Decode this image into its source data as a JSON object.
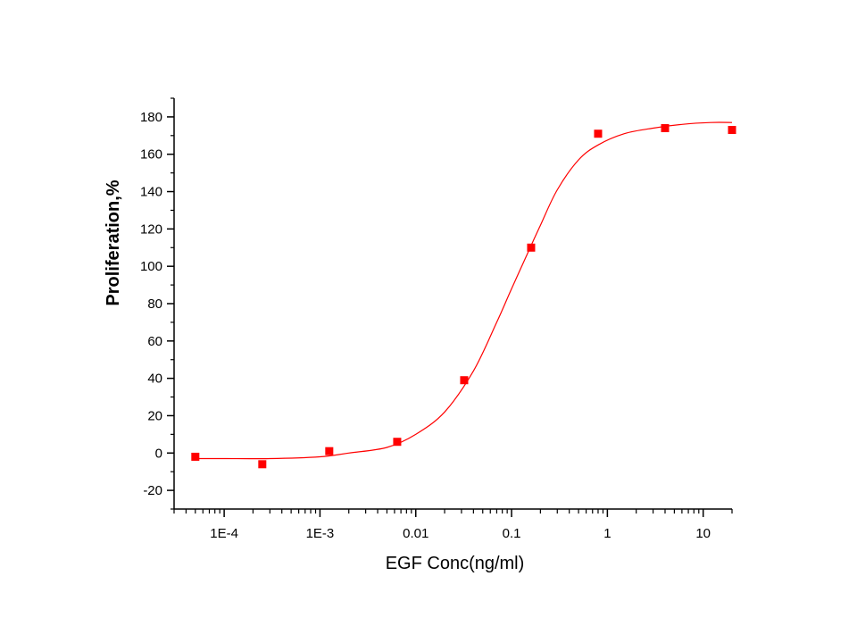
{
  "chart_data": {
    "type": "scatter",
    "title": "",
    "xlabel": "EGF Conc(ng/ml)",
    "ylabel": "Proliferation,%",
    "x_scale": "log",
    "xlim": [
      3e-05,
      20
    ],
    "ylim": [
      -30,
      190
    ],
    "x_ticks": [
      {
        "value": 0.0001,
        "label": "1E-4"
      },
      {
        "value": 0.001,
        "label": "1E-3"
      },
      {
        "value": 0.01,
        "label": "0.01"
      },
      {
        "value": 0.1,
        "label": "0.1"
      },
      {
        "value": 1,
        "label": "1"
      },
      {
        "value": 10,
        "label": "10"
      }
    ],
    "y_ticks": [
      -20,
      0,
      20,
      40,
      60,
      80,
      100,
      120,
      140,
      160,
      180
    ],
    "grid": false,
    "legend": "none",
    "series": [
      {
        "kind": "points",
        "marker": "square",
        "color": "#ff0000",
        "x": [
          5e-05,
          0.00025,
          0.00125,
          0.0064,
          0.032,
          0.16,
          0.8,
          4.0,
          20.0
        ],
        "y": [
          -2,
          -6,
          1,
          6,
          39,
          110,
          171,
          174,
          173
        ]
      },
      {
        "kind": "fit",
        "color": "#ff0000",
        "x": [
          5e-05,
          0.0001,
          0.0003,
          0.001,
          0.002,
          0.005,
          0.01,
          0.02,
          0.04,
          0.07,
          0.1,
          0.15,
          0.2,
          0.3,
          0.5,
          0.8,
          1.5,
          3,
          6,
          12,
          20
        ],
        "y": [
          -3,
          -3,
          -3,
          -2,
          0,
          3,
          10,
          22,
          44,
          70,
          88,
          108,
          122,
          141,
          157,
          165,
          171,
          174,
          176,
          177,
          177
        ]
      }
    ]
  }
}
